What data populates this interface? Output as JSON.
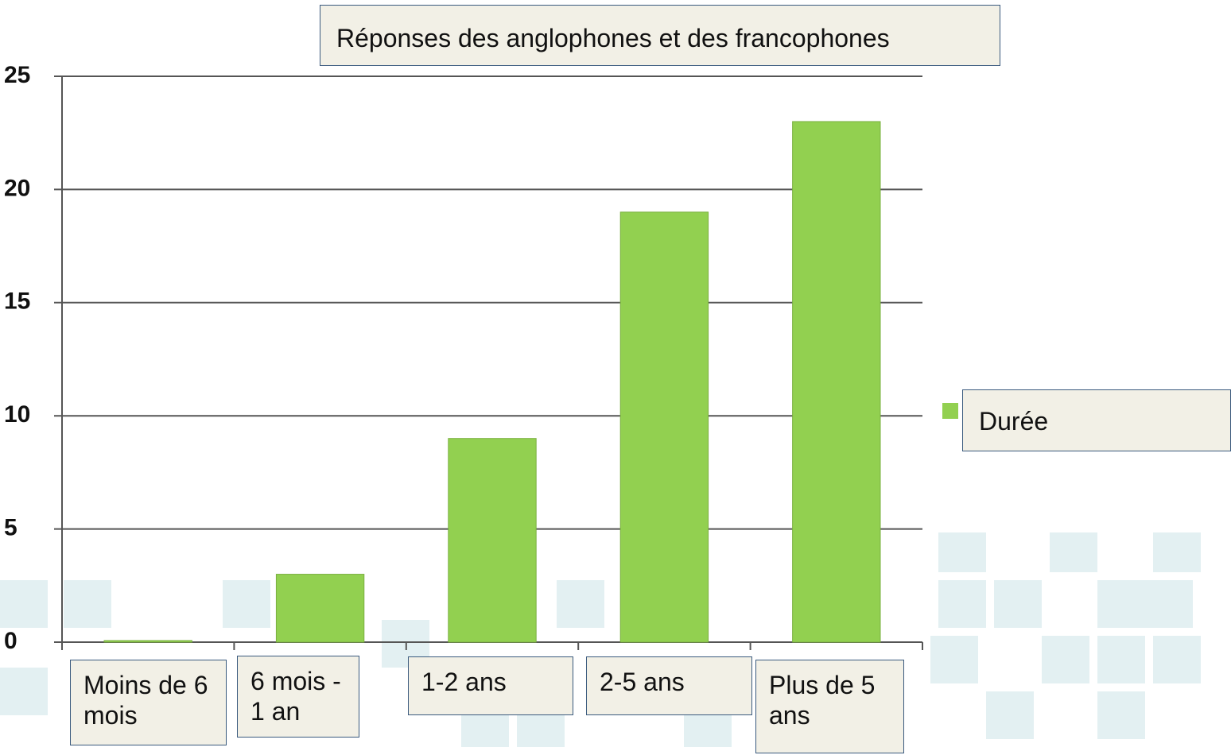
{
  "chart_data": {
    "type": "bar",
    "title": "Réponses des anglophones et des francophones",
    "categories": [
      "Moins de 6 mois",
      "6 mois - 1 an",
      "1-2 ans",
      "2-5 ans",
      "Plus de 5 ans"
    ],
    "series": [
      {
        "name": "Durée",
        "color": "#92d050",
        "values": [
          0,
          3,
          9,
          19,
          23
        ]
      }
    ],
    "ylim": [
      0,
      25
    ],
    "yticks": [
      0,
      5,
      10,
      15,
      20,
      25
    ],
    "grid": true,
    "legend": "right"
  }
}
